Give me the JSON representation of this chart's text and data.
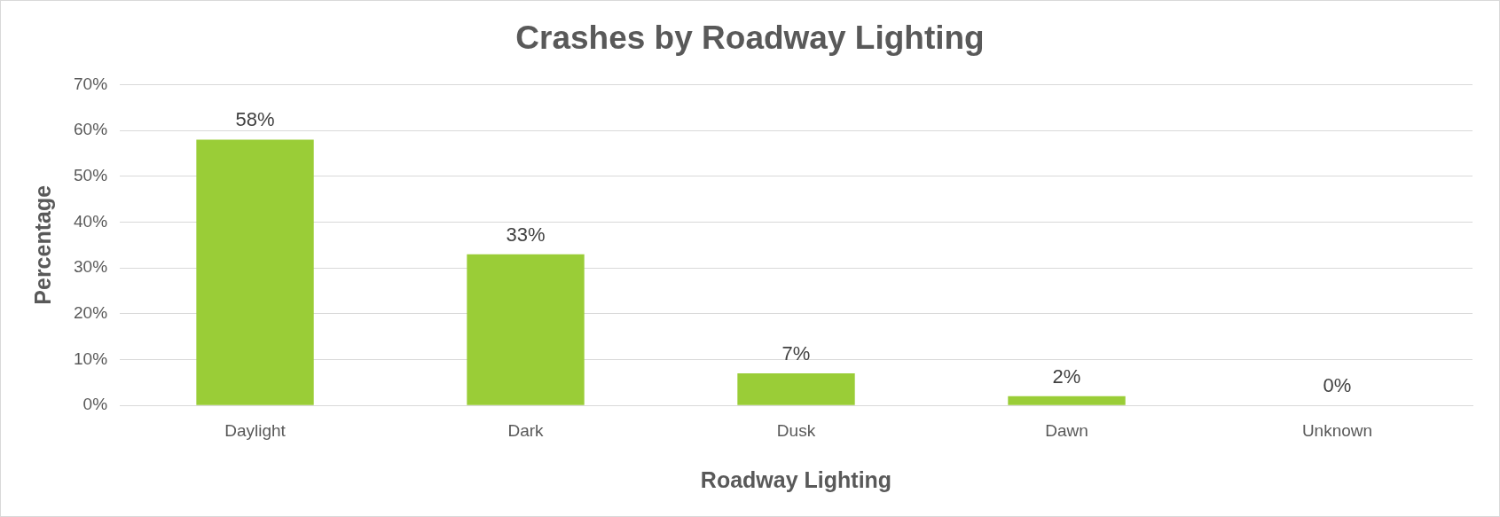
{
  "chart_data": {
    "type": "bar",
    "title": "Crashes by Roadway Lighting",
    "xlabel": "Roadway Lighting",
    "ylabel": "Percentage",
    "categories": [
      "Daylight",
      "Dark",
      "Dusk",
      "Dawn",
      "Unknown"
    ],
    "values": [
      58,
      33,
      7,
      2,
      0
    ],
    "value_labels": [
      "58%",
      "33%",
      "7%",
      "2%",
      "0%"
    ],
    "color": "#9acd37",
    "ylim": [
      0,
      70
    ],
    "yticks": [
      {
        "value": 0,
        "label": "0%"
      },
      {
        "value": 10,
        "label": "10%"
      },
      {
        "value": 20,
        "label": "20%"
      },
      {
        "value": 30,
        "label": "30%"
      },
      {
        "value": 40,
        "label": "40%"
      },
      {
        "value": 50,
        "label": "50%"
      },
      {
        "value": 60,
        "label": "60%"
      },
      {
        "value": 70,
        "label": "70%"
      }
    ],
    "grid": "y",
    "legend": false
  }
}
